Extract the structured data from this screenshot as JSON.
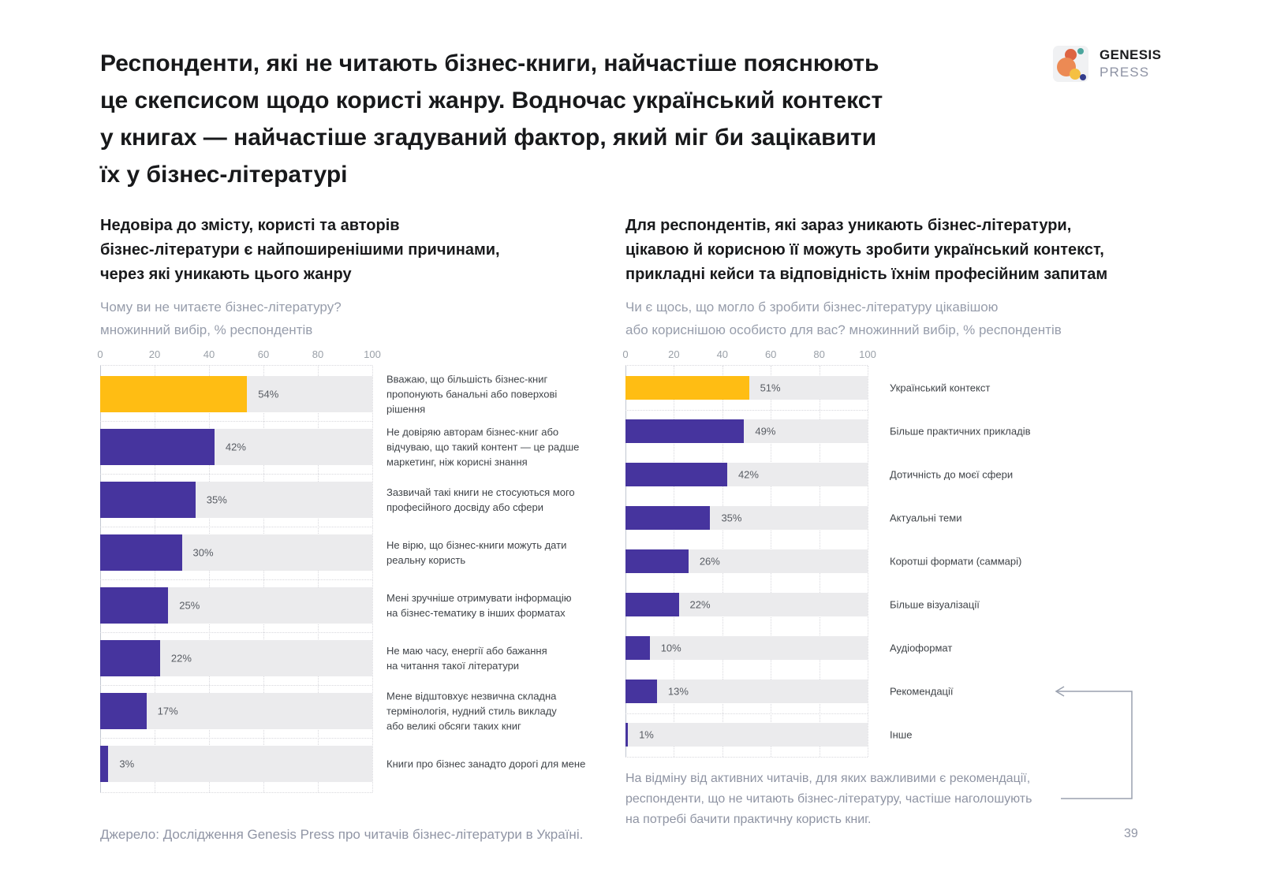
{
  "title_lines": [
    "Респонденти, які не читають бізнес-книги, найчастіше пояснюють",
    "це скепсисом щодо користі жанру. Водночас український контекст",
    "у книгах — найчастіше згадуваний фактор, який міг би зацікавити",
    "їх у бізнес-літературі"
  ],
  "logo": {
    "line1": "GENESIS",
    "line2": "PRESS"
  },
  "left_section": {
    "heading_lines": [
      "Недовіра до змісту, користі та авторів",
      "бізнес-літератури є найпоширенішими причинами,",
      "через які уникають цього жанру"
    ],
    "subtitle_lines": [
      "Чому ви не читаєте бізнес-літературу?",
      "множинний вибір, % респондентів"
    ]
  },
  "right_section": {
    "heading_lines": [
      "Для респондентів, які зараз уникають бізнес-літератури,",
      "цікавою й корисною її можуть зробити український контекст,",
      "прикладні кейси та відповідність їхнім професійним запитам"
    ],
    "subtitle_lines": [
      "Чи є щось, що могло б зробити бізнес-літературу цікавішою",
      "або кориснішою особисто для вас? множинний вибір, % респондентів"
    ],
    "note_lines": [
      "На відміну від активних читачів, для яких важливими є рекомендації,",
      "респонденти, що не читають бізнес-літературу, частіше наголошують",
      "на потребі бачити практичну користь книг."
    ]
  },
  "footer": {
    "source": "Джерело: Дослідження Genesis Press про читачів бізнес-літератури в Україні.",
    "page_number": "39"
  },
  "colors": {
    "bar": "#46349E",
    "highlight": "#FFBD13",
    "track": "#EBEBED",
    "grid": "#D8D8DD",
    "arrow": "#9AA1AF"
  },
  "chart_data": [
    {
      "id": "why-not-read",
      "type": "bar",
      "orientation": "horizontal",
      "title": "Чому ви не читаєте бізнес-літературу? множинний вибір, % респондентів",
      "categories": [
        "Вважаю, що більшість бізнес-книг\nпропонують банальні або поверхові\nрішення",
        "Не довіряю авторам бізнес-книг або\nвідчуваю, що такий контент — це радше\nмаркетинг, ніж корисні знання",
        "Зазвичай такі книги не стосуються мого\nпрофесійного досвіду або сфери",
        "Не вірю, що бізнес-книги можуть дати\nреальну користь",
        "Мені зручніше отримувати інформацію\nна бізнес-тематику в інших форматах",
        "Не маю часу, енергії або бажання\nна читання такої літератури",
        "Мене відштовхує незвична складна\nтермінологія, нудний стиль викладу\nабо великі обсяги таких книг",
        "Книги про бізнес занадто дорогі для мене"
      ],
      "values": [
        54,
        42,
        35,
        30,
        25,
        22,
        17,
        3
      ],
      "value_labels": [
        "54%",
        "42%",
        "35%",
        "30%",
        "25%",
        "22%",
        "17%",
        "3%"
      ],
      "highlight_index": 0,
      "xlim": [
        0,
        100
      ],
      "ticks": [
        0,
        20,
        40,
        60,
        80,
        100
      ],
      "grid": "dotted"
    },
    {
      "id": "what-could-attract",
      "type": "bar",
      "orientation": "horizontal",
      "title": "Чи є щось, що могло б зробити бізнес-літературу цікавішою або кориснішою особисто для вас? множинний вибір, % респондентів",
      "categories": [
        "Український контекст",
        "Більше практичних прикладів",
        "Дотичність до моєї сфери",
        "Актуальні теми",
        "Коротші формати (саммарі)",
        "Більше візуалізації",
        "Аудіоформат",
        "Рекомендації",
        "Інше"
      ],
      "values": [
        51,
        49,
        42,
        35,
        26,
        22,
        10,
        13,
        1
      ],
      "value_labels": [
        "51%",
        "49%",
        "42%",
        "35%",
        "26%",
        "22%",
        "10%",
        "13%",
        "1%"
      ],
      "highlight_index": 0,
      "xlim": [
        0,
        100
      ],
      "ticks": [
        0,
        20,
        40,
        60,
        80,
        100
      ],
      "grid": "dotted"
    }
  ]
}
